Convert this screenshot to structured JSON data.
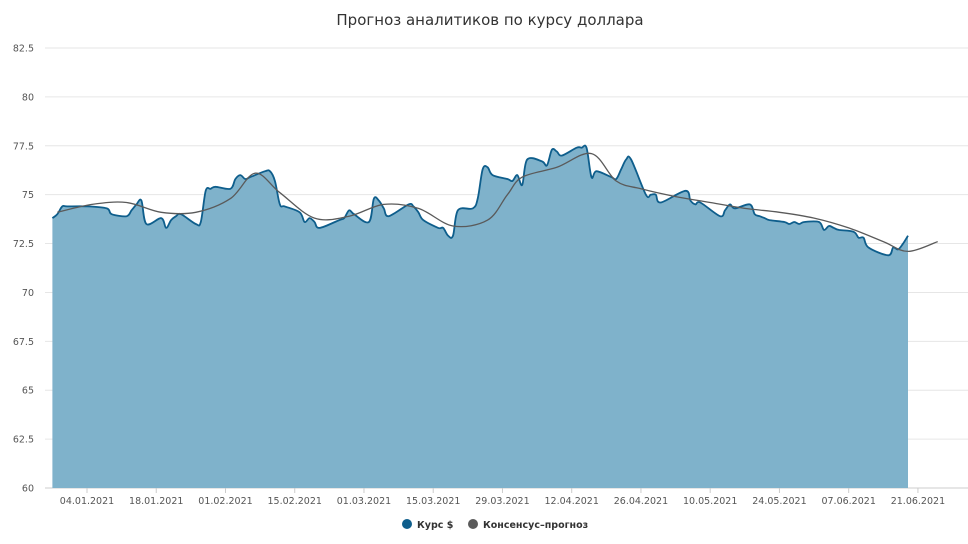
{
  "chart_data": {
    "type": "area",
    "title": "Прогноз аналитиков по курсу доллара",
    "xlabel": "",
    "ylabel": "",
    "ylim": [
      60,
      82.5
    ],
    "yticks": [
      60,
      62.5,
      65,
      67.5,
      70,
      72.5,
      75,
      77.5,
      80,
      82.5
    ],
    "xlim": [
      "2021-12-28",
      "2021-06-25"
    ],
    "xticks": [
      "04.01.2021",
      "18.01.2021",
      "01.02.2021",
      "15.02.2021",
      "01.03.2021",
      "15.03.2021",
      "29.03.2021",
      "12.04.2021",
      "26.04.2021",
      "10.05.2021",
      "24.05.2021",
      "07.06.2021",
      "21.06.2021"
    ],
    "grid": true,
    "legend_position": "bottom-center",
    "series": [
      {
        "name": "Курс $",
        "kind": "area",
        "color": "#0e5e8c",
        "fill_color": "#7fb2cb",
        "x": [
          "28.12.2020",
          "29.12.2020",
          "30.12.2020",
          "31.12.2020",
          "04.01.2021",
          "08.01.2021",
          "09.01.2021",
          "12.01.2021",
          "13.01.2021",
          "14.01.2021",
          "15.01.2021",
          "16.01.2021",
          "19.01.2021",
          "20.01.2021",
          "21.01.2021",
          "22.01.2021",
          "23.01.2021",
          "26.01.2021",
          "27.01.2021",
          "28.01.2021",
          "29.01.2021",
          "30.01.2021",
          "02.02.2021",
          "03.02.2021",
          "04.02.2021",
          "05.02.2021",
          "06.02.2021",
          "09.02.2021",
          "10.02.2021",
          "11.02.2021",
          "12.02.2021",
          "13.02.2021",
          "16.02.2021",
          "17.02.2021",
          "18.02.2021",
          "19.02.2021",
          "20.02.2021",
          "24.02.2021",
          "25.02.2021",
          "26.02.2021",
          "27.02.2021",
          "02.03.2021",
          "03.03.2021",
          "04.03.2021",
          "05.03.2021",
          "06.03.2021",
          "10.03.2021",
          "11.03.2021",
          "12.03.2021",
          "13.03.2021",
          "16.03.2021",
          "17.03.2021",
          "18.03.2021",
          "19.03.2021",
          "20.03.2021",
          "23.03.2021",
          "24.03.2021",
          "25.03.2021",
          "26.03.2021",
          "27.03.2021",
          "30.03.2021",
          "31.03.2021",
          "01.04.2021",
          "02.04.2021",
          "03.04.2021",
          "06.04.2021",
          "07.04.2021",
          "08.04.2021",
          "09.04.2021",
          "10.04.2021",
          "13.04.2021",
          "14.04.2021",
          "15.04.2021",
          "16.04.2021",
          "17.04.2021",
          "20.04.2021",
          "21.04.2021",
          "22.04.2021",
          "23.04.2021",
          "24.04.2021",
          "27.04.2021",
          "28.04.2021",
          "29.04.2021",
          "30.04.2021",
          "05.05.2021",
          "06.05.2021",
          "07.05.2021",
          "08.05.2021",
          "12.05.2021",
          "13.05.2021",
          "14.05.2021",
          "15.05.2021",
          "18.05.2021",
          "19.05.2021",
          "20.05.2021",
          "21.05.2021",
          "22.05.2021",
          "25.05.2021",
          "26.05.2021",
          "27.05.2021",
          "28.05.2021",
          "29.05.2021",
          "01.06.2021",
          "02.06.2021",
          "03.06.2021",
          "04.06.2021",
          "05.06.2021",
          "08.06.2021",
          "09.06.2021",
          "10.06.2021",
          "11.06.2021",
          "15.06.2021",
          "16.06.2021",
          "17.06.2021",
          "18.06.2021",
          "19.06.2021"
        ],
        "values": [
          73.8,
          74.0,
          74.4,
          74.4,
          74.4,
          74.3,
          74.0,
          73.9,
          74.2,
          74.5,
          74.7,
          73.5,
          73.8,
          73.3,
          73.7,
          73.9,
          74.0,
          73.5,
          73.6,
          75.2,
          75.3,
          75.4,
          75.3,
          75.8,
          76.0,
          75.8,
          75.9,
          76.2,
          76.2,
          75.7,
          74.5,
          74.4,
          74.1,
          73.6,
          73.8,
          73.6,
          73.3,
          73.7,
          73.8,
          74.2,
          74.0,
          73.6,
          74.8,
          74.7,
          74.3,
          73.9,
          74.5,
          74.4,
          74.1,
          73.7,
          73.3,
          73.3,
          72.9,
          72.9,
          74.2,
          74.3,
          74.8,
          76.3,
          76.4,
          76.0,
          75.8,
          75.7,
          76.0,
          75.5,
          76.8,
          76.7,
          76.5,
          77.3,
          77.2,
          77.0,
          77.4,
          77.4,
          77.4,
          75.9,
          76.2,
          75.9,
          75.8,
          76.3,
          76.8,
          76.8,
          75.0,
          75.0,
          75.0,
          74.6,
          75.2,
          74.7,
          74.5,
          74.6,
          73.9,
          74.2,
          74.5,
          74.3,
          74.5,
          74.0,
          73.9,
          73.8,
          73.7,
          73.6,
          73.5,
          73.6,
          73.5,
          73.6,
          73.6,
          73.2,
          73.4,
          73.3,
          73.2,
          73.1,
          72.8,
          72.8,
          72.3,
          71.9,
          72.3,
          72.2,
          72.5,
          72.9
        ]
      },
      {
        "name": "Консенсус–прогноз",
        "kind": "line",
        "color": "#5a5a5a",
        "x": [
          "29.12.2020",
          "05.01.2021",
          "12.01.2021",
          "19.01.2021",
          "26.01.2021",
          "02.02.2021",
          "07.02.2021",
          "12.02.2021",
          "19.02.2021",
          "26.02.2021",
          "05.03.2021",
          "12.03.2021",
          "19.03.2021",
          "26.03.2021",
          "30.03.2021",
          "02.04.2021",
          "09.04.2021",
          "16.04.2021",
          "21.04.2021",
          "26.04.2021",
          "03.05.2021",
          "10.05.2021",
          "17.05.2021",
          "24.05.2021",
          "31.05.2021",
          "07.06.2021",
          "14.06.2021",
          "19.06.2021",
          "25.06.2021"
        ],
        "values": [
          74.1,
          74.5,
          74.6,
          74.1,
          74.1,
          74.8,
          76.1,
          75.1,
          73.8,
          73.9,
          74.5,
          74.3,
          73.4,
          73.7,
          75.0,
          75.9,
          76.4,
          77.1,
          75.7,
          75.3,
          74.9,
          74.6,
          74.3,
          74.1,
          73.8,
          73.3,
          72.6,
          72.1,
          72.6
        ]
      }
    ]
  }
}
